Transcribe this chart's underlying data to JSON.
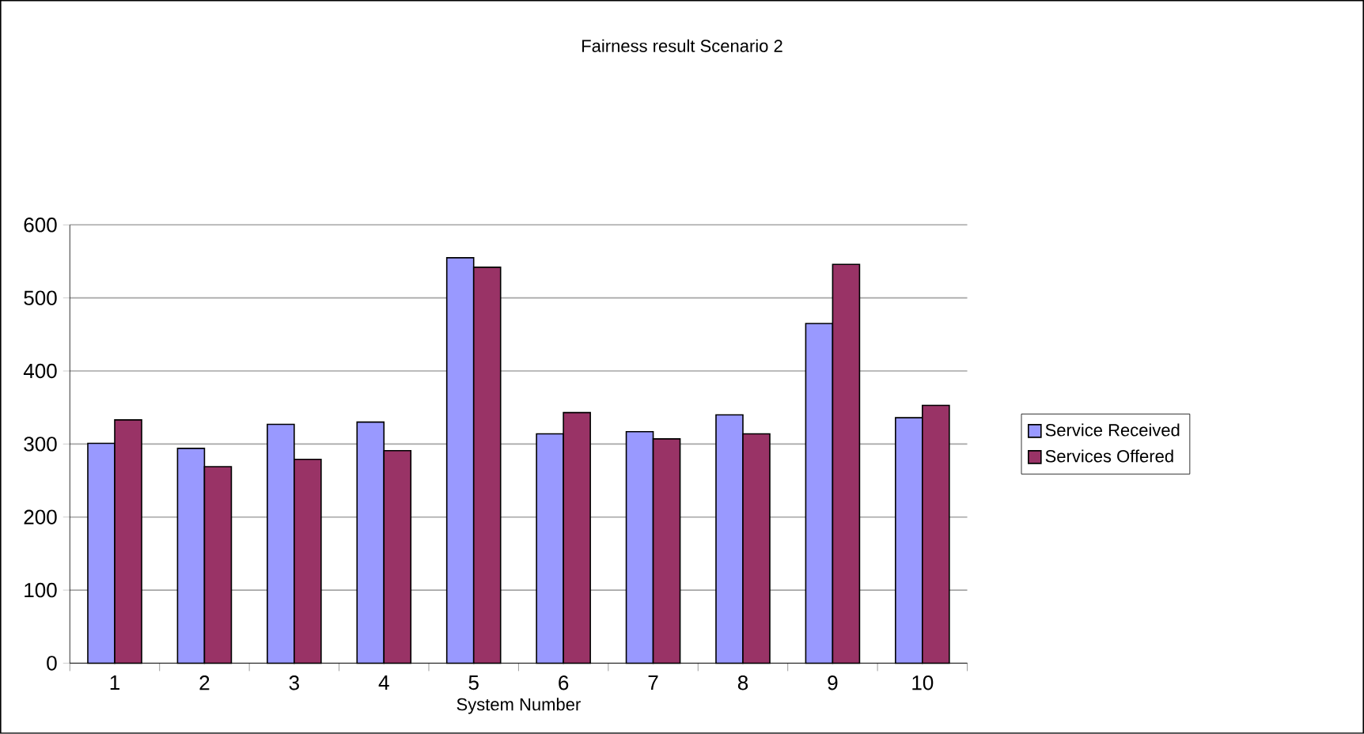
{
  "chart_data": {
    "type": "bar",
    "title": "Fairness result Scenario 2",
    "xlabel": "System Number",
    "categories": [
      "1",
      "2",
      "3",
      "4",
      "5",
      "6",
      "7",
      "8",
      "9",
      "10"
    ],
    "series": [
      {
        "name": "Service Received",
        "color": "#9999ff",
        "values": [
          301,
          294,
          327,
          330,
          555,
          314,
          317,
          340,
          465,
          336
        ]
      },
      {
        "name": "Services Offered",
        "color": "#993366",
        "values": [
          333,
          269,
          279,
          291,
          542,
          343,
          307,
          314,
          546,
          353
        ]
      }
    ],
    "ylim": [
      0,
      600
    ],
    "yticks": [
      0,
      100,
      200,
      300,
      400,
      500,
      600
    ],
    "grid": "y",
    "legend": "right"
  }
}
